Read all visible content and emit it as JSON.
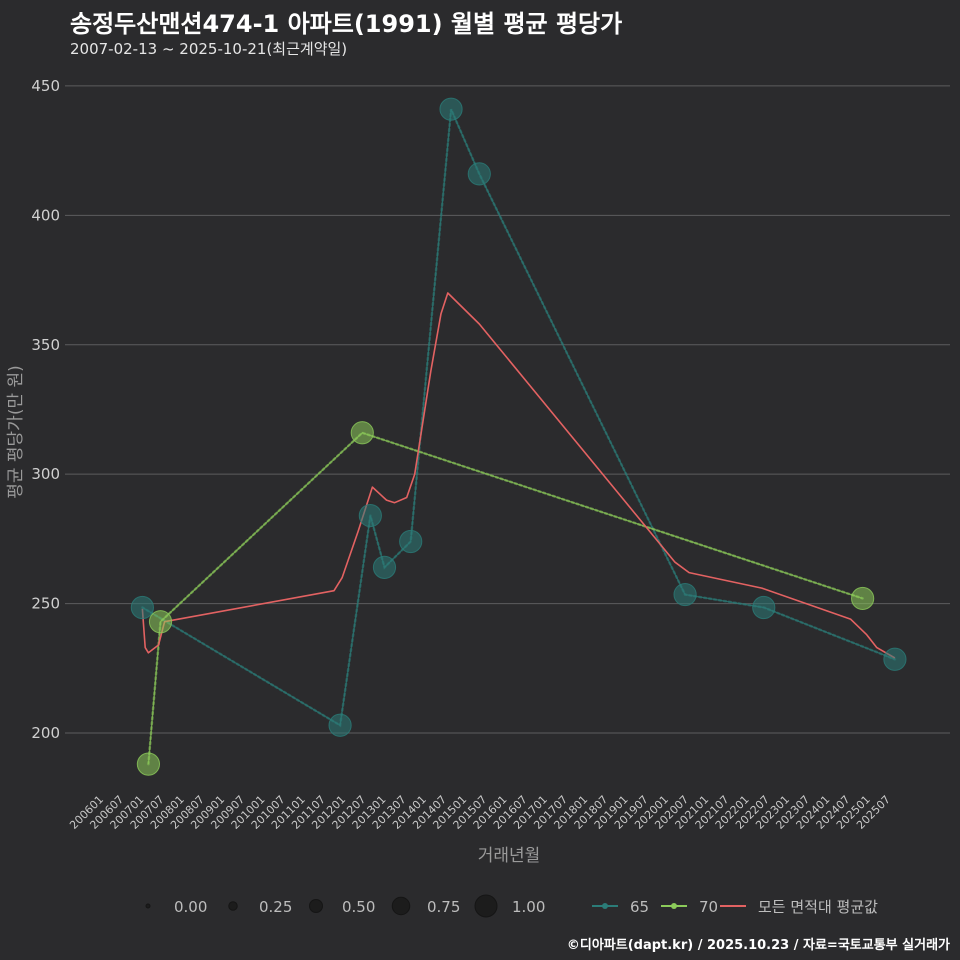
{
  "header": {
    "title": "송정두산맨션474-1 아파트(1991) 월별 평균 평당가",
    "subtitle": "2007-02-13 ~ 2025-10-21(최근계약일)"
  },
  "caption": "©디아파트(dapt.kr) / 2025.10.23 / 자료=국토교통부 실거래가",
  "colors": {
    "background": "#2b2b2d",
    "grid": "#5c5c5e",
    "series65": "#2b7c78",
    "series70": "#8ccb5a",
    "average": "#e36262"
  },
  "chart_data": {
    "type": "line",
    "xlabel": "거래년월",
    "ylabel": "평균 평당가(만 원)",
    "ylim": [
      178,
      460
    ],
    "yticks": [
      200,
      250,
      300,
      350,
      400,
      450
    ],
    "xticks": [
      "200601",
      "200607",
      "200701",
      "200707",
      "200801",
      "200807",
      "200901",
      "200907",
      "201001",
      "201007",
      "201101",
      "201107",
      "201201",
      "201207",
      "201301",
      "201307",
      "201401",
      "201407",
      "201501",
      "201507",
      "201601",
      "201607",
      "201701",
      "201707",
      "201801",
      "201807",
      "201901",
      "201907",
      "202001",
      "202007",
      "202101",
      "202107",
      "202201",
      "202207",
      "202301",
      "202307",
      "202401",
      "202407",
      "202501",
      "202507"
    ],
    "series": [
      {
        "name": "65",
        "points": [
          {
            "x": 2007.05,
            "y": 248.5,
            "size": 0.45
          },
          {
            "x": 2011.95,
            "y": 203,
            "size": 0.45
          },
          {
            "x": 2012.7,
            "y": 284,
            "size": 0.45
          },
          {
            "x": 2013.05,
            "y": 264,
            "size": 0.45
          },
          {
            "x": 2013.7,
            "y": 274,
            "size": 0.45
          },
          {
            "x": 2014.7,
            "y": 441,
            "size": 0.45
          },
          {
            "x": 2015.4,
            "y": 416,
            "size": 0.45
          },
          {
            "x": 2020.5,
            "y": 253.5,
            "size": 0.45
          },
          {
            "x": 2022.45,
            "y": 248.5,
            "size": 0.45
          },
          {
            "x": 2025.7,
            "y": 228.5,
            "size": 0.45
          }
        ]
      },
      {
        "name": "70",
        "points": [
          {
            "x": 2007.2,
            "y": 188,
            "size": 0.45
          },
          {
            "x": 2007.5,
            "y": 243,
            "size": 0.45
          },
          {
            "x": 2012.5,
            "y": 316,
            "size": 0.45
          },
          {
            "x": 2024.9,
            "y": 252,
            "size": 0.45
          }
        ]
      }
    ],
    "average": {
      "name": "모든 면적대 평균값",
      "points": [
        {
          "x": 2007.05,
          "y": 248
        },
        {
          "x": 2007.12,
          "y": 233
        },
        {
          "x": 2007.2,
          "y": 231
        },
        {
          "x": 2007.45,
          "y": 234
        },
        {
          "x": 2007.6,
          "y": 243
        },
        {
          "x": 2011.8,
          "y": 255
        },
        {
          "x": 2012.0,
          "y": 260
        },
        {
          "x": 2012.4,
          "y": 278
        },
        {
          "x": 2012.75,
          "y": 295
        },
        {
          "x": 2013.1,
          "y": 290
        },
        {
          "x": 2013.3,
          "y": 289
        },
        {
          "x": 2013.6,
          "y": 291
        },
        {
          "x": 2013.8,
          "y": 300
        },
        {
          "x": 2014.2,
          "y": 340
        },
        {
          "x": 2014.45,
          "y": 362
        },
        {
          "x": 2014.62,
          "y": 370
        },
        {
          "x": 2015.4,
          "y": 358
        },
        {
          "x": 2020.25,
          "y": 266
        },
        {
          "x": 2020.6,
          "y": 262
        },
        {
          "x": 2022.4,
          "y": 256
        },
        {
          "x": 2024.6,
          "y": 244
        },
        {
          "x": 2025.0,
          "y": 238
        },
        {
          "x": 2025.25,
          "y": 233
        },
        {
          "x": 2025.7,
          "y": 229
        }
      ]
    },
    "size_legend": [
      {
        "label": "0.00",
        "size": 0.0
      },
      {
        "label": "0.25",
        "size": 0.25
      },
      {
        "label": "0.50",
        "size": 0.5
      },
      {
        "label": "0.75",
        "size": 0.75
      },
      {
        "label": "1.00",
        "size": 1.0
      }
    ],
    "color_legend": [
      {
        "label": "65",
        "color": "#2b7c78"
      },
      {
        "label": "70",
        "color": "#8ccb5a"
      },
      {
        "label": "모든 면적대 평균값",
        "color": "#e36262"
      }
    ]
  }
}
